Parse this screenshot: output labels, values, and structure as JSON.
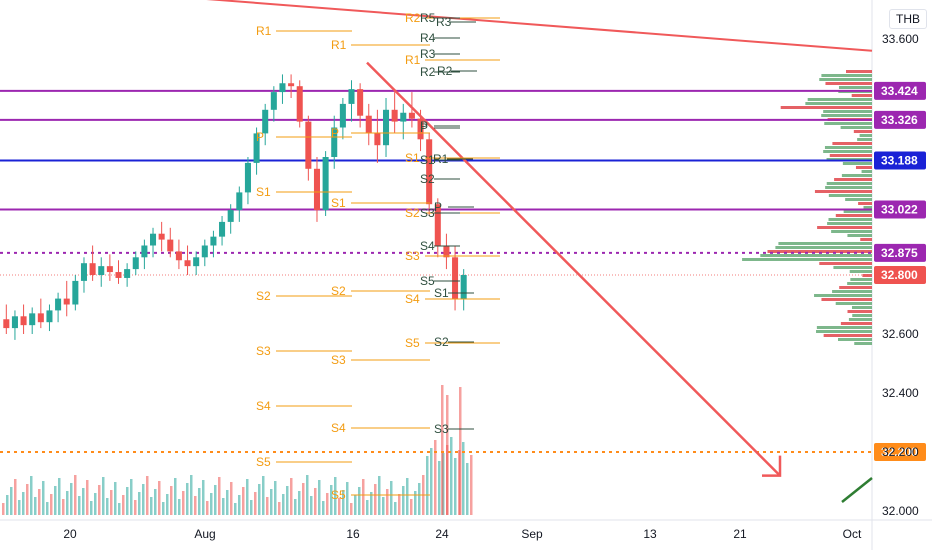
{
  "currency_label": "THB",
  "colors": {
    "up": "#26a69a",
    "down": "#ef5350",
    "trend": "#f0595a",
    "purple": "#9c27b0",
    "blue": "#1a22d6",
    "dotted_purple": "#9c27b0",
    "dotted_orange": "#ff8c1a",
    "pivot_orange": "#f39c12",
    "pivot_dark": "#2f4f3f",
    "vp_up": "#66aa77",
    "vp_down": "#e0454a"
  },
  "chart_data": {
    "type": "candlestick",
    "title": "",
    "y_axis": {
      "min": 32.0,
      "max": 33.7,
      "ticks": [
        32.0,
        32.2,
        32.4,
        32.6,
        33.6
      ]
    },
    "x_axis": {
      "ticks": [
        "20",
        "Aug",
        "16",
        "24",
        "Sep",
        "13",
        "21",
        "Oct"
      ]
    },
    "price_levels": [
      {
        "value": 33.424,
        "label": "33.424",
        "style": "solid",
        "color": "purple"
      },
      {
        "value": 33.326,
        "label": "33.326",
        "style": "solid",
        "color": "purple"
      },
      {
        "value": 33.188,
        "label": "33.188",
        "style": "solid",
        "color": "blue"
      },
      {
        "value": 33.022,
        "label": "33.022",
        "style": "solid",
        "color": "purple"
      },
      {
        "value": 32.875,
        "label": "32.875",
        "style": "dotted",
        "color": "purple"
      },
      {
        "value": 32.8,
        "label": "32.800",
        "style": "current",
        "color": "down"
      },
      {
        "value": 32.2,
        "label": "32.200",
        "style": "dotted",
        "color": "orange"
      }
    ],
    "trendlines": [
      {
        "name": "long-resistance",
        "from": {
          "date": "start",
          "price": 33.79
        },
        "to": {
          "date": "Oct",
          "price": 33.56
        }
      },
      {
        "name": "forecast-arrow",
        "from": {
          "date": "17",
          "price": 33.52
        },
        "to": {
          "date": "28",
          "price": 32.12
        }
      }
    ],
    "pivot_labels_orange": [
      "R2",
      "R1",
      "R1",
      "R1",
      "P",
      "P",
      "S1",
      "S1",
      "S1",
      "S2",
      "S2",
      "S3",
      "S2",
      "S3",
      "S3",
      "S4",
      "S4",
      "S4",
      "S5",
      "S5",
      "S5"
    ],
    "pivot_labels_dark": [
      "R5",
      "R3",
      "R4",
      "R3",
      "R2",
      "R2",
      "P",
      "P",
      "S1",
      "R1",
      "S2",
      "S3",
      "P",
      "S4",
      "S5",
      "S1",
      "S2",
      "S3"
    ],
    "candles": [
      [
        32.65,
        32.7,
        32.6,
        32.62
      ],
      [
        32.62,
        32.68,
        32.58,
        32.66
      ],
      [
        32.66,
        32.7,
        32.6,
        32.63
      ],
      [
        32.63,
        32.69,
        32.6,
        32.67
      ],
      [
        32.67,
        32.72,
        32.62,
        32.64
      ],
      [
        32.64,
        32.7,
        32.61,
        32.68
      ],
      [
        32.68,
        32.74,
        32.64,
        32.72
      ],
      [
        32.72,
        32.78,
        32.66,
        32.7
      ],
      [
        32.7,
        32.8,
        32.68,
        32.78
      ],
      [
        32.78,
        32.86,
        32.74,
        32.84
      ],
      [
        32.84,
        32.9,
        32.78,
        32.8
      ],
      [
        32.8,
        32.86,
        32.76,
        32.83
      ],
      [
        32.83,
        32.87,
        32.78,
        32.81
      ],
      [
        32.81,
        32.85,
        32.77,
        32.79
      ],
      [
        32.79,
        32.84,
        32.76,
        32.82
      ],
      [
        32.82,
        32.88,
        32.8,
        32.86
      ],
      [
        32.86,
        32.92,
        32.82,
        32.9
      ],
      [
        32.9,
        32.96,
        32.86,
        32.94
      ],
      [
        32.94,
        32.98,
        32.88,
        32.92
      ],
      [
        32.92,
        32.96,
        32.86,
        32.88
      ],
      [
        32.88,
        32.92,
        32.82,
        32.85
      ],
      [
        32.85,
        32.9,
        32.8,
        32.83
      ],
      [
        32.83,
        32.88,
        32.8,
        32.86
      ],
      [
        32.86,
        32.92,
        32.83,
        32.9
      ],
      [
        32.9,
        32.95,
        32.86,
        32.93
      ],
      [
        32.93,
        33.0,
        32.9,
        32.98
      ],
      [
        32.98,
        33.04,
        32.94,
        33.02
      ],
      [
        33.02,
        33.1,
        32.98,
        33.08
      ],
      [
        33.08,
        33.2,
        33.04,
        33.18
      ],
      [
        33.18,
        33.3,
        33.14,
        33.28
      ],
      [
        33.28,
        33.38,
        33.24,
        33.36
      ],
      [
        33.36,
        33.44,
        33.32,
        33.42
      ],
      [
        33.42,
        33.48,
        33.38,
        33.45
      ],
      [
        33.45,
        33.48,
        33.4,
        33.44
      ],
      [
        33.44,
        33.46,
        33.3,
        33.32
      ],
      [
        33.32,
        33.34,
        33.12,
        33.16
      ],
      [
        33.16,
        33.2,
        32.98,
        33.02
      ],
      [
        33.02,
        33.22,
        33.0,
        33.2
      ],
      [
        33.2,
        33.34,
        33.16,
        33.3
      ],
      [
        33.3,
        33.4,
        33.26,
        33.38
      ],
      [
        33.38,
        33.46,
        33.32,
        33.43
      ],
      [
        33.43,
        33.45,
        33.3,
        33.34
      ],
      [
        33.34,
        33.38,
        33.24,
        33.28
      ],
      [
        33.28,
        33.36,
        33.18,
        33.24
      ],
      [
        33.24,
        33.4,
        33.2,
        33.36
      ],
      [
        33.36,
        33.42,
        33.28,
        33.32
      ],
      [
        33.32,
        33.38,
        33.26,
        33.35
      ],
      [
        33.35,
        33.42,
        33.3,
        33.33
      ],
      [
        33.33,
        33.36,
        33.22,
        33.26
      ],
      [
        33.26,
        33.28,
        33.0,
        33.04
      ],
      [
        33.04,
        33.06,
        32.86,
        32.9
      ],
      [
        32.9,
        32.94,
        32.82,
        32.86
      ],
      [
        32.86,
        32.9,
        32.68,
        32.72
      ],
      [
        32.72,
        32.82,
        32.68,
        32.8
      ]
    ],
    "volume_profile_note": "horizontal volume-by-price bars on right edge"
  }
}
